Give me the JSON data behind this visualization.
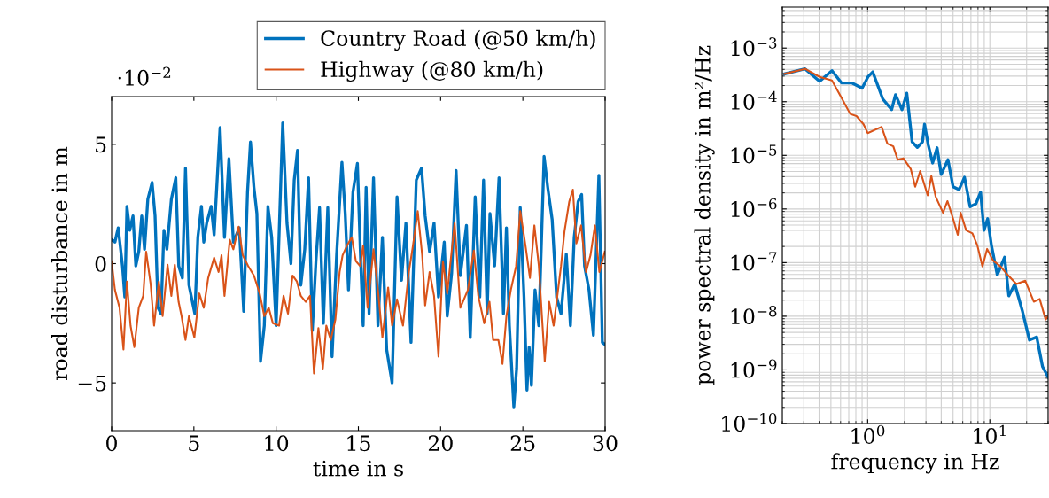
{
  "chart_data": [
    {
      "type": "line",
      "xlabel": "time in s",
      "ylabel": "road disturbance in m",
      "annotations": [
        "·10$^{−2}$"
      ],
      "xlim": [
        0,
        30
      ],
      "ylim": [
        -7,
        7
      ],
      "xticks": [
        0,
        5,
        10,
        15,
        20,
        25,
        30
      ],
      "yticks": [
        {
          "value": -5,
          "label": "−5"
        },
        0,
        5
      ],
      "legend": "top right",
      "grid": false,
      "line_style": "solid",
      "marker": "none",
      "series": [
        {
          "name": "Country Road (@50 km/h)",
          "color": "#0072bd",
          "x": [
            0,
            0.2,
            0.4,
            0.66,
            0.8,
            0.93,
            1.1,
            1.3,
            1.47,
            1.65,
            1.83,
            2.0,
            2.2,
            2.46,
            2.64,
            2.82,
            3.0,
            3.18,
            3.36,
            3.63,
            3.9,
            4.08,
            4.3,
            4.49,
            4.7,
            5.06,
            5.24,
            5.46,
            5.6,
            5.78,
            6.05,
            6.23,
            6.59,
            6.86,
            7.13,
            7.4,
            7.76,
            8.03,
            8.26,
            8.44,
            8.65,
            8.83,
            9.05,
            9.28,
            9.5,
            9.73,
            10.0,
            10.4,
            10.66,
            10.9,
            11.1,
            11.3,
            11.5,
            11.74,
            11.97,
            12.2,
            12.42,
            12.64,
            12.87,
            13.14,
            13.4,
            13.68,
            14.0,
            14.2,
            14.4,
            14.67,
            14.94,
            15.15,
            15.29,
            15.47,
            15.65,
            15.92,
            16.19,
            16.46,
            16.72,
            17.05,
            17.35,
            17.62,
            17.89,
            18.2,
            18.52,
            18.84,
            19.06,
            19.33,
            19.6,
            19.87,
            20.22,
            20.4,
            20.67,
            20.94,
            21.2,
            21.57,
            21.8,
            22.1,
            22.38,
            22.61,
            22.83,
            23.0,
            23.28,
            23.55,
            23.82,
            24.0,
            24.18,
            24.45,
            24.62,
            24.84,
            25.07,
            25.25,
            25.38,
            25.52,
            25.74,
            25.97,
            26.29,
            26.51,
            26.78,
            27.05,
            27.32,
            27.64,
            27.89,
            28.12,
            28.36,
            28.57,
            28.75,
            29.02,
            29.29,
            29.62,
            29.83,
            30.0
          ],
          "values": [
            1.0,
            0.9,
            1.5,
            -0.1,
            -1.4,
            2.4,
            1.4,
            2.0,
            -0.1,
            0.5,
            2.0,
            0.6,
            2.7,
            3.4,
            2.0,
            -1.85,
            -2.1,
            1.4,
            0.6,
            2.7,
            3.6,
            -0.1,
            -0.6,
            4.0,
            -0.9,
            -2.1,
            1.1,
            2.4,
            0.9,
            1.7,
            2.4,
            1.2,
            5.7,
            1.1,
            4.4,
            0.9,
            1.5,
            -2.0,
            3.0,
            5.1,
            3.2,
            2.1,
            -4.1,
            -2.6,
            2.4,
            1.1,
            -2.6,
            5.9,
            1.7,
            0,
            3.5,
            4.75,
            -0.9,
            0.6,
            3.6,
            -2.8,
            0.1,
            2.35,
            -2.5,
            2.35,
            -3.9,
            0.4,
            4.25,
            2.1,
            -1.1,
            3.0,
            4.2,
            -0.1,
            -2.6,
            3.2,
            -2.1,
            3.6,
            -2.6,
            1.1,
            -3.6,
            -5.0,
            2.8,
            -0.7,
            1.7,
            -3.3,
            3.5,
            4.0,
            2.0,
            0.5,
            1.7,
            -1.4,
            0.9,
            -2.2,
            -0.4,
            3.9,
            -0.5,
            1.6,
            -3.1,
            2.8,
            -1.4,
            3.5,
            -2.1,
            2.1,
            -0.1,
            3.6,
            -2.1,
            1.5,
            -2.6,
            -6.0,
            -4.4,
            2.35,
            -1.4,
            -5.3,
            -3.5,
            -5.1,
            -1.1,
            -2.6,
            4.5,
            3.2,
            1.85,
            -1.4,
            -2.1,
            0.4,
            -2.6,
            1.1,
            2.6,
            2.9,
            -0.1,
            -1.1,
            -3.0,
            3.7,
            -3.3,
            -3.4
          ]
        },
        {
          "name": "Highway (@80 km/h)",
          "color": "#d95319",
          "x": [
            0,
            0.2,
            0.48,
            0.72,
            0.93,
            1.15,
            1.38,
            1.65,
            1.92,
            2.1,
            2.37,
            2.58,
            2.87,
            3.1,
            3.4,
            3.63,
            3.84,
            4.07,
            4.25,
            4.49,
            4.7,
            5.03,
            5.33,
            5.6,
            5.87,
            6.23,
            6.5,
            6.68,
            6.86,
            7.18,
            7.4,
            7.72,
            7.97,
            8.3,
            8.65,
            9.0,
            9.28,
            9.55,
            9.8,
            10.18,
            10.45,
            10.72,
            11.0,
            11.26,
            11.5,
            11.8,
            12.06,
            12.3,
            12.57,
            12.84,
            13.05,
            13.32,
            13.6,
            13.86,
            14.04,
            14.3,
            14.6,
            14.85,
            15.11,
            15.29,
            15.56,
            15.92,
            16.19,
            16.46,
            16.81,
            17.05,
            17.35,
            17.71,
            18.07,
            18.34,
            18.61,
            18.88,
            19.06,
            19.33,
            19.6,
            19.87,
            20.14,
            20.4,
            20.85,
            21.2,
            21.66,
            22.02,
            22.29,
            22.65,
            22.97,
            23.19,
            23.51,
            23.76,
            24.0,
            24.27,
            24.59,
            24.84,
            25.16,
            25.43,
            25.7,
            25.97,
            26.33,
            26.6,
            26.87,
            27.14,
            27.32,
            27.53,
            27.82,
            28.04,
            28.25,
            28.54,
            28.84,
            29.11,
            29.38,
            29.65,
            29.98
          ],
          "values": [
            0.1,
            -1.1,
            -1.85,
            -3.6,
            -0.75,
            -2.6,
            -3.5,
            -1.85,
            -1.35,
            0.5,
            -0.85,
            -2.6,
            -0.75,
            -2.2,
            -0.05,
            -1.35,
            -0.05,
            -1.6,
            -2.2,
            -3.2,
            -2.2,
            -3.1,
            -1.25,
            -1.85,
            -0.6,
            0.25,
            -0.35,
            0.35,
            -1.35,
            1.0,
            0.6,
            1.55,
            0.35,
            -0.1,
            -0.5,
            -1.25,
            -2.2,
            -1.85,
            -2.5,
            -2.6,
            -1.35,
            -2.1,
            -0.5,
            -0.75,
            -1.35,
            -1.6,
            -1.35,
            -4.6,
            -2.7,
            -4.4,
            -2.6,
            -3.2,
            -2.35,
            -0.35,
            0.35,
            0.75,
            1.1,
            0.1,
            -0.1,
            0.75,
            -1.85,
            0.6,
            -1.1,
            -3.1,
            -1.0,
            -2.6,
            -1.5,
            -2.6,
            -0.35,
            0.85,
            2.2,
            0.35,
            -1.75,
            -0.35,
            -1.35,
            -3.9,
            0.1,
            -1.25,
            1.7,
            -1.85,
            -1.1,
            0.55,
            -1.35,
            -2.5,
            -1.6,
            -3.2,
            -3.2,
            -4.2,
            -2.2,
            -1.1,
            -0.1,
            2.2,
            0.75,
            -0.6,
            1.6,
            -0.1,
            -4.1,
            -1.6,
            -2.6,
            -1.1,
            -0.1,
            1.35,
            2.6,
            3.1,
            0.85,
            1.6,
            -0.35,
            0.35,
            1.6,
            -0.35,
            0.5
          ]
        }
      ]
    },
    {
      "type": "line",
      "xlabel": "frequency in Hz",
      "ylabel": "power spectral density in m²/Hz",
      "log": "xy",
      "xlim": [
        0.2,
        30
      ],
      "ylim": [
        1e-10,
        0.0058
      ],
      "xticks": [
        {
          "value": 1,
          "label": "10$^{0}$"
        },
        {
          "value": 10,
          "label": "10$^{1}$"
        }
      ],
      "yticks": [
        {
          "value": 1e-10,
          "label": "10$^{−10}$"
        },
        {
          "value": 1e-09,
          "label": "10$^{−9}$"
        },
        {
          "value": 1e-08,
          "label": "10$^{−8}$"
        },
        {
          "value": 1e-07,
          "label": "10$^{−7}$"
        },
        {
          "value": 1e-06,
          "label": "10$^{−6}$"
        },
        {
          "value": 1e-05,
          "label": "10$^{−5}$"
        },
        {
          "value": 0.0001,
          "label": "10$^{−4}$"
        },
        {
          "value": 0.001,
          "label": "10$^{−3}$"
        }
      ],
      "grid": true,
      "legend": false,
      "line_style": "solid",
      "marker": "none",
      "series": [
        {
          "color": "#0072bd",
          "x": [
            0.208,
            0.307,
            0.404,
            0.51,
            0.61,
            0.74,
            0.9,
            1.01,
            1.1,
            1.33,
            1.57,
            1.69,
            1.91,
            2.09,
            2.31,
            2.55,
            2.81,
            2.92,
            3.13,
            3.4,
            3.7,
            4.0,
            4.54,
            5.0,
            5.6,
            6.2,
            6.9,
            7.7,
            8.4,
            8.95,
            9.6,
            10.3,
            11.5,
            13.2,
            14.3,
            16.0,
            18.4,
            21.1,
            24.2,
            27.0,
            30.0
          ],
          "values": [
            0.00033,
            0.00041,
            0.00024,
            0.00038,
            0.000224,
            0.000224,
            0.000178,
            0.000295,
            0.00036,
            0.000112,
            7.1e-05,
            0.000135,
            7.1e-05,
            0.000144,
            1.78e-05,
            1.41e-05,
            1.78e-05,
            3.8e-05,
            1.58e-05,
            7.2e-06,
            1.38e-05,
            4.4e-06,
            8.3e-06,
            2.6e-06,
            2.3e-06,
            3.9e-06,
            1.1e-06,
            1.25e-06,
            2.06e-06,
            4e-07,
            6.6e-07,
            2.1e-07,
            5.9e-08,
            1.26e-07,
            2.4e-08,
            4e-08,
            1.29e-08,
            3.6e-09,
            4.1e-09,
            1.15e-09,
            7.4e-10
          ]
        },
        {
          "color": "#d95319",
          "x": [
            0.208,
            0.307,
            0.404,
            0.51,
            0.61,
            0.72,
            0.81,
            0.925,
            1.0,
            1.3,
            1.45,
            1.62,
            1.76,
            1.96,
            2.25,
            2.45,
            2.69,
            3.1,
            3.32,
            3.6,
            4.14,
            4.5,
            5.0,
            5.46,
            5.77,
            6.4,
            7.2,
            7.9,
            8.7,
            9.5,
            10.6,
            12.2,
            14.0,
            16.5,
            19.5,
            22.9,
            25.6,
            28.6,
            30.0
          ],
          "values": [
            0.00033,
            0.00041,
            0.00029,
            0.00025,
            0.000119,
            5.9e-05,
            5.4e-05,
            3.8e-05,
            2.6e-05,
            3.4e-05,
            1.65e-05,
            1.47e-05,
            8.3e-06,
            8.8e-06,
            5.6e-06,
            2.6e-06,
            5.1e-06,
            1.8e-06,
            4.1e-06,
            1.7e-06,
            8.5e-07,
            1.4e-06,
            6.6e-07,
            3.3e-07,
            8.5e-07,
            4e-07,
            3.5e-07,
            2.1e-07,
            8.5e-08,
            1.8e-07,
            1.1e-07,
            8.5e-08,
            5.9e-08,
            4e-08,
            4.6e-08,
            1.87e-08,
            2.1e-08,
            8.7e-09,
            1e-08
          ]
        }
      ]
    }
  ]
}
